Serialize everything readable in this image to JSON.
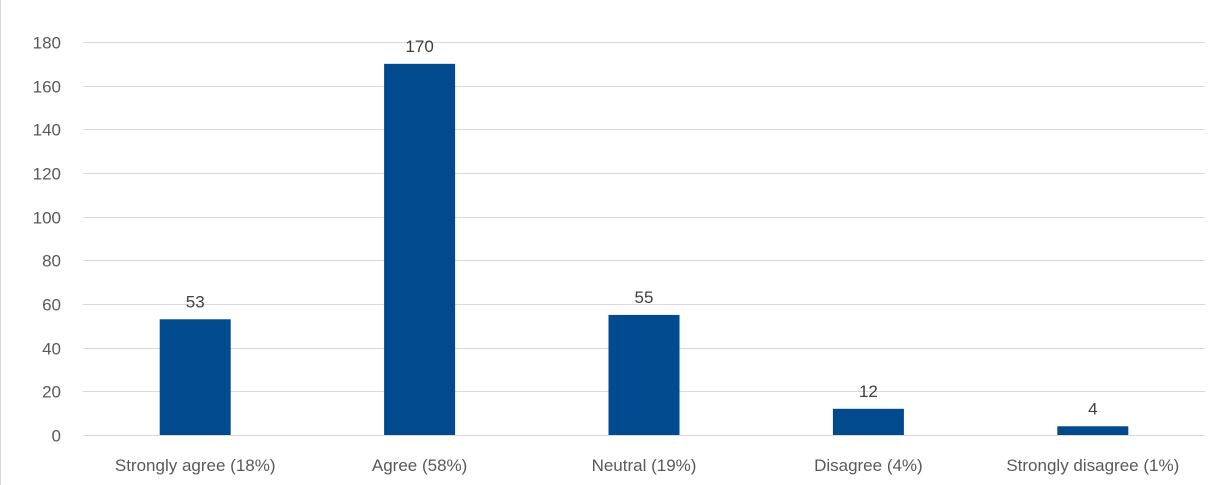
{
  "chart_data": {
    "type": "bar",
    "title": "",
    "xlabel": "",
    "ylabel": "",
    "categories": [
      "Strongly agree (18%)",
      "Agree (58%)",
      "Neutral (19%)",
      "Disagree (4%)",
      "Strongly disagree (1%)"
    ],
    "values": [
      53,
      170,
      55,
      12,
      4
    ],
    "ylim": [
      0,
      180
    ],
    "yticks": [
      0,
      20,
      40,
      60,
      80,
      100,
      120,
      140,
      160,
      180
    ],
    "grid": true,
    "legend": "none",
    "data_labels": true,
    "bar_color": "#004A8D"
  }
}
